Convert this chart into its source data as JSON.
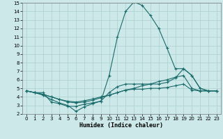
{
  "background_color": "#cce8e8",
  "grid_color": "#aacfcf",
  "line_color": "#1a6b6b",
  "xlabel": "Humidex (Indice chaleur)",
  "xlim": [
    -0.5,
    23.5
  ],
  "ylim": [
    2,
    15
  ],
  "xticks": [
    0,
    1,
    2,
    3,
    4,
    5,
    6,
    7,
    8,
    9,
    10,
    11,
    12,
    13,
    14,
    15,
    16,
    17,
    18,
    19,
    20,
    21,
    22,
    23
  ],
  "yticks": [
    2,
    3,
    4,
    5,
    6,
    7,
    8,
    9,
    10,
    11,
    12,
    13,
    14,
    15
  ],
  "line1_x": [
    0,
    1,
    2,
    3,
    4,
    5,
    6,
    7,
    8,
    9,
    10,
    11,
    12,
    13,
    14,
    15,
    16,
    17,
    18,
    19,
    20,
    21,
    22,
    23
  ],
  "line1_y": [
    4.7,
    4.5,
    4.5,
    3.4,
    3.2,
    2.9,
    2.9,
    3.15,
    3.3,
    3.5,
    6.5,
    11.0,
    14.0,
    15.1,
    14.7,
    13.5,
    12.0,
    9.7,
    7.3,
    7.3,
    6.5,
    5.0,
    4.7,
    4.7
  ],
  "line2_x": [
    0,
    1,
    2,
    3,
    4,
    5,
    6,
    7,
    8,
    9,
    10,
    11,
    12,
    13,
    14,
    15,
    16,
    17,
    18,
    19,
    20,
    21,
    22,
    23
  ],
  "line2_y": [
    4.7,
    4.5,
    4.2,
    3.7,
    3.3,
    3.0,
    2.3,
    2.85,
    3.2,
    3.5,
    4.5,
    5.2,
    5.5,
    5.5,
    5.5,
    5.5,
    5.5,
    5.7,
    6.2,
    7.3,
    6.5,
    5.0,
    4.7,
    4.7
  ],
  "line3_x": [
    0,
    1,
    2,
    3,
    4,
    5,
    6,
    7,
    8,
    9,
    10,
    11,
    12,
    13,
    14,
    15,
    16,
    17,
    18,
    19,
    20,
    21,
    22,
    23
  ],
  "line3_y": [
    4.7,
    4.5,
    4.3,
    4.0,
    3.7,
    3.5,
    3.4,
    3.55,
    3.75,
    4.0,
    4.2,
    4.5,
    4.8,
    5.0,
    5.3,
    5.5,
    5.8,
    6.0,
    6.3,
    6.5,
    5.0,
    4.7,
    4.7,
    4.7
  ],
  "line4_x": [
    0,
    1,
    2,
    3,
    4,
    5,
    6,
    7,
    8,
    9,
    10,
    11,
    12,
    13,
    14,
    15,
    16,
    17,
    18,
    19,
    20,
    21,
    22,
    23
  ],
  "line4_y": [
    4.7,
    4.5,
    4.3,
    4.0,
    3.7,
    3.4,
    3.3,
    3.4,
    3.6,
    3.9,
    4.2,
    4.5,
    4.8,
    4.9,
    4.9,
    5.0,
    5.0,
    5.1,
    5.3,
    5.5,
    4.8,
    4.7,
    4.7,
    4.7
  ]
}
